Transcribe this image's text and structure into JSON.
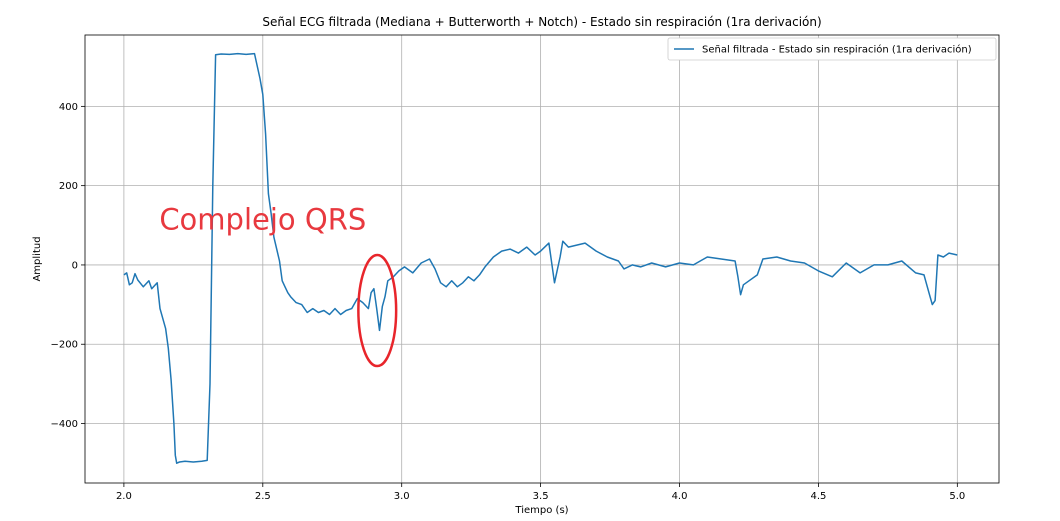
{
  "chart_data": {
    "type": "line",
    "title": "Señal ECG filtrada (Mediana + Butterworth + Notch) - Estado sin respiración (1ra derivación)",
    "xlabel": "Tiempo (s)",
    "ylabel": "Amplitud",
    "xlim": [
      1.86,
      5.15
    ],
    "ylim": [
      -550,
      580
    ],
    "xticks": [
      2.0,
      2.5,
      3.0,
      3.5,
      4.0,
      4.5,
      5.0
    ],
    "xtick_labels": [
      "2.0",
      "2.5",
      "3.0",
      "3.5",
      "4.0",
      "4.5",
      "5.0"
    ],
    "yticks": [
      -400,
      -200,
      0,
      200,
      400
    ],
    "ytick_labels": [
      "−400",
      "−200",
      "0",
      "200",
      "400"
    ],
    "grid": true,
    "legend_position": "top-right",
    "series": [
      {
        "name": "Señal filtrada - Estado sin respiración (1ra derivación)",
        "color": "#1f77b4",
        "x": [
          2.0,
          2.01,
          2.02,
          2.03,
          2.04,
          2.05,
          2.07,
          2.09,
          2.1,
          2.12,
          2.13,
          2.15,
          2.16,
          2.17,
          2.18,
          2.185,
          2.19,
          2.2,
          2.22,
          2.25,
          2.28,
          2.3,
          2.31,
          2.32,
          2.33,
          2.35,
          2.38,
          2.41,
          2.44,
          2.47,
          2.49,
          2.5,
          2.51,
          2.52,
          2.53,
          2.54,
          2.55,
          2.56,
          2.57,
          2.58,
          2.59,
          2.6,
          2.62,
          2.64,
          2.66,
          2.68,
          2.7,
          2.72,
          2.74,
          2.76,
          2.78,
          2.8,
          2.82,
          2.84,
          2.86,
          2.88,
          2.89,
          2.9,
          2.91,
          2.92,
          2.93,
          2.94,
          2.95,
          2.97,
          2.99,
          3.01,
          3.04,
          3.07,
          3.1,
          3.12,
          3.14,
          3.16,
          3.18,
          3.2,
          3.22,
          3.24,
          3.26,
          3.28,
          3.3,
          3.33,
          3.36,
          3.39,
          3.42,
          3.45,
          3.48,
          3.5,
          3.53,
          3.55,
          3.57,
          3.58,
          3.6,
          3.63,
          3.66,
          3.7,
          3.74,
          3.78,
          3.8,
          3.83,
          3.86,
          3.9,
          3.95,
          4.0,
          4.05,
          4.1,
          4.15,
          4.2,
          4.21,
          4.22,
          4.23,
          4.24,
          4.25,
          4.28,
          4.3,
          4.35,
          4.4,
          4.45,
          4.5,
          4.55,
          4.6,
          4.65,
          4.7,
          4.75,
          4.8,
          4.85,
          4.88,
          4.9,
          4.91,
          4.92,
          4.93,
          4.95,
          4.97,
          5.0
        ],
        "values": [
          -25,
          -20,
          -50,
          -45,
          -22,
          -38,
          -55,
          -40,
          -60,
          -45,
          -110,
          -160,
          -210,
          -290,
          -400,
          -480,
          -500,
          -497,
          -495,
          -497,
          -495,
          -493,
          -300,
          200,
          530,
          532,
          531,
          533,
          531,
          533,
          470,
          430,
          330,
          180,
          130,
          70,
          40,
          10,
          -40,
          -55,
          -70,
          -80,
          -95,
          -100,
          -120,
          -110,
          -120,
          -115,
          -125,
          -110,
          -125,
          -115,
          -110,
          -85,
          -95,
          -110,
          -70,
          -60,
          -110,
          -165,
          -105,
          -80,
          -40,
          -30,
          -15,
          -5,
          -20,
          5,
          15,
          -10,
          -45,
          -55,
          -40,
          -55,
          -45,
          -30,
          -40,
          -25,
          -5,
          20,
          35,
          40,
          30,
          45,
          25,
          35,
          55,
          -45,
          20,
          60,
          45,
          50,
          55,
          35,
          20,
          10,
          -10,
          0,
          -5,
          5,
          -5,
          5,
          0,
          20,
          15,
          10,
          -30,
          -75,
          -50,
          -45,
          -40,
          -25,
          15,
          20,
          10,
          5,
          -15,
          -30,
          5,
          -20,
          0,
          0,
          10,
          -20,
          -25,
          -75,
          -100,
          -90,
          25,
          20,
          30,
          25
        ]
      }
    ],
    "annotations": [
      {
        "text": "Complejo QRS",
        "x": 2.5,
        "y": 90
      },
      {
        "shape": "ellipse",
        "cx": 2.912,
        "cy": -115,
        "rx": 0.068,
        "ry": 140
      }
    ]
  }
}
